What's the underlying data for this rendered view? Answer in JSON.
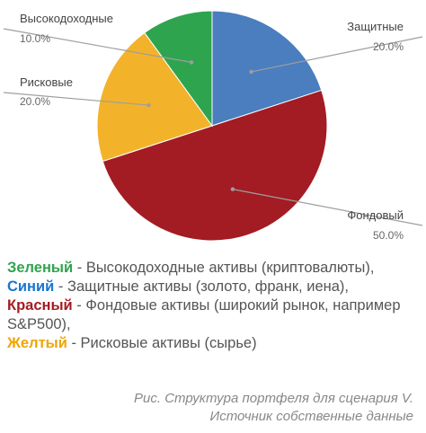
{
  "chart_data": {
    "type": "pie",
    "slices": [
      {
        "label": "Защитные",
        "value": 20.0,
        "pct": "20.0%",
        "color": "#4a7ebf"
      },
      {
        "label": "Фондовый",
        "value": 50.0,
        "pct": "50.0%",
        "color": "#a31c23"
      },
      {
        "label": "Рисковые",
        "value": 20.0,
        "pct": "20.0%",
        "color": "#f2b32b"
      },
      {
        "label": "Высокодоходные",
        "value": 10.0,
        "pct": "10.0%",
        "color": "#2fa44f"
      }
    ]
  },
  "legend": [
    {
      "color_word": "Зеленый",
      "color": "#2fa44f",
      "rest": " - Высокодоходные активы (криптовалюты),"
    },
    {
      "color_word": "Синий",
      "color": "#1976d2",
      "rest": " - Защитные активы (золото, франк, иена),"
    },
    {
      "color_word": "Красный",
      "color": "#a31c23",
      "rest": " - Фондовые активы (широкий рынок, например S&P500),"
    },
    {
      "color_word": "Желтый",
      "color": "#f0a500",
      "rest": " - Рисковые активы (сырье)"
    }
  ],
  "caption": {
    "line1": "Рис. Структура портфеля для сценария V.",
    "line2": "Источник собственные данные"
  }
}
